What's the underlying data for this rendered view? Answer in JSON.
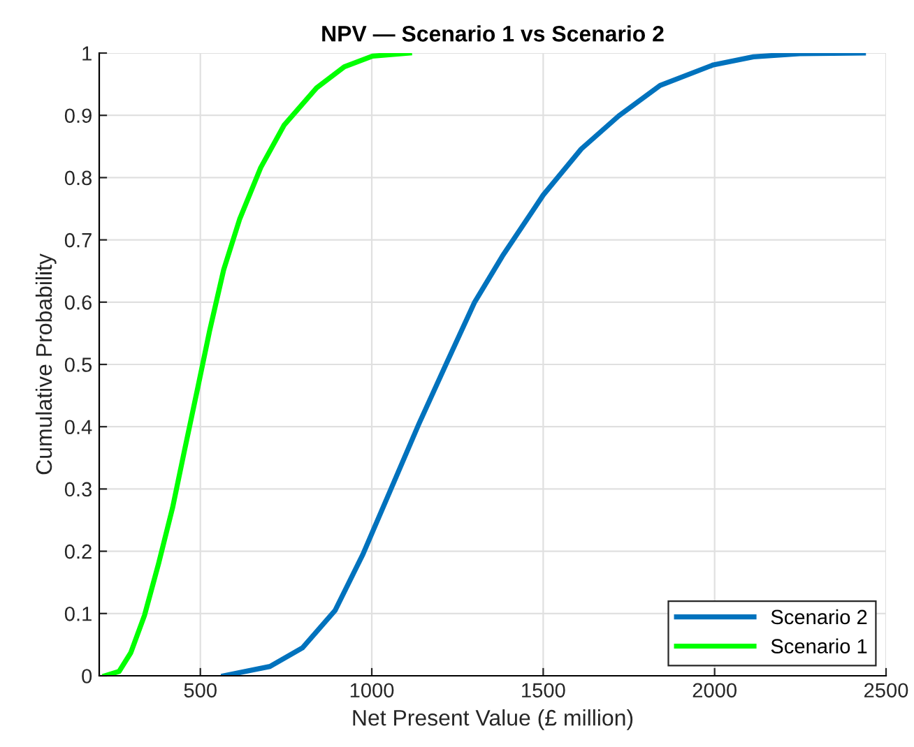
{
  "chart_data": {
    "type": "line",
    "title": "NPV — Scenario 1 vs Scenario 2",
    "xlabel": "Net Present Value (£ million)",
    "ylabel": "Cumulative Probability",
    "xlim": [
      205,
      2500
    ],
    "ylim": [
      0,
      1
    ],
    "xticks": [
      500,
      1000,
      1500,
      2000,
      2500
    ],
    "yticks": [
      0,
      0.1,
      0.2,
      0.3,
      0.4,
      0.5,
      0.6,
      0.7,
      0.8,
      0.9,
      1
    ],
    "grid": true,
    "legend": "bottom right",
    "line_style": "solid",
    "marker": "none",
    "series": [
      {
        "name": "Scenario 2",
        "color": "#0072bd",
        "x": [
          568,
          703,
          798,
          893,
          974,
          1056,
          1137,
          1218,
          1300,
          1381,
          1500,
          1611,
          1720,
          1841,
          1996,
          2113,
          2248,
          2434
        ],
        "values": [
          0,
          0.015,
          0.045,
          0.105,
          0.195,
          0.3,
          0.404,
          0.502,
          0.6,
          0.674,
          0.772,
          0.846,
          0.899,
          0.948,
          0.981,
          0.994,
          0.999,
          1.0
        ]
      },
      {
        "name": "Scenario 1",
        "color": "#00ff00",
        "x": [
          222,
          263,
          297,
          337,
          378,
          419,
          453,
          493,
          527,
          568,
          615,
          676,
          744,
          839,
          920,
          1002,
          1110
        ],
        "values": [
          0,
          0.007,
          0.037,
          0.097,
          0.18,
          0.27,
          0.36,
          0.464,
          0.554,
          0.652,
          0.734,
          0.816,
          0.884,
          0.944,
          0.978,
          0.995,
          1.0
        ]
      }
    ]
  }
}
